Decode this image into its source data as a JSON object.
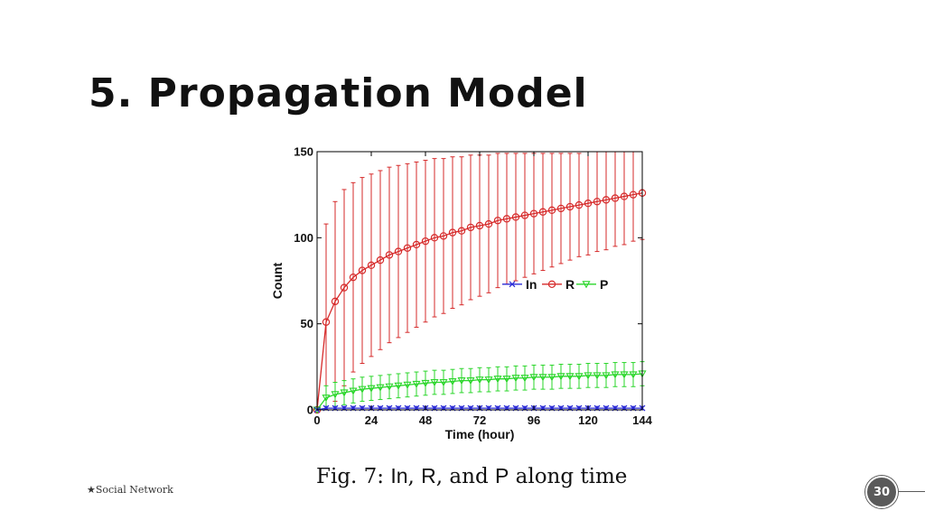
{
  "slide": {
    "title": "5. Propagation Model",
    "footer": "★Social Network",
    "page_number": "30"
  },
  "caption": {
    "prefix": "Fig. 7: ",
    "in": "In",
    "sep1": ", ",
    "r": "R",
    "mid": ", and ",
    "p": "P",
    "suffix": " along time"
  },
  "colors": {
    "In": "#2b2bd6",
    "R": "#d62a2a",
    "P": "#2ad62a",
    "axis": "#000000"
  },
  "chart_data": {
    "type": "line",
    "title": "",
    "xlabel": "Time (hour)",
    "ylabel": "Count",
    "xlim": [
      0,
      144
    ],
    "ylim": [
      0,
      150
    ],
    "xticks": [
      0,
      24,
      48,
      72,
      96,
      120,
      144
    ],
    "yticks": [
      0,
      50,
      100,
      150
    ],
    "grid": false,
    "legend": "center-right",
    "x": [
      0,
      4,
      8,
      12,
      16,
      20,
      24,
      28,
      32,
      36,
      40,
      44,
      48,
      52,
      56,
      60,
      64,
      68,
      72,
      76,
      80,
      84,
      88,
      92,
      96,
      100,
      104,
      108,
      112,
      116,
      120,
      124,
      128,
      132,
      136,
      140,
      144
    ],
    "series": [
      {
        "name": "In",
        "marker": "x",
        "values": [
          0,
          1,
          1,
          1,
          1,
          1,
          1,
          1,
          1,
          1,
          1,
          1,
          1,
          1,
          1,
          1,
          1,
          1,
          1,
          1,
          1,
          1,
          1,
          1,
          1,
          1,
          1,
          1,
          1,
          1,
          1,
          1,
          1,
          1,
          1,
          1,
          1
        ],
        "error": [
          0,
          1,
          1,
          1,
          1,
          1,
          1,
          1,
          1,
          1,
          1,
          1,
          1,
          1,
          1,
          1,
          1,
          1,
          1,
          1,
          1,
          1,
          1,
          1,
          1,
          1,
          1,
          1,
          1,
          1,
          1,
          1,
          1,
          1,
          1,
          1,
          1
        ]
      },
      {
        "name": "R",
        "marker": "o",
        "values": [
          0,
          51,
          63,
          71,
          77,
          81,
          84,
          87,
          90,
          92,
          94,
          96,
          98,
          100,
          101,
          103,
          104,
          106,
          107,
          108,
          110,
          111,
          112,
          113,
          114,
          115,
          116,
          117,
          118,
          119,
          120,
          121,
          122,
          123,
          124,
          125,
          126
        ],
        "error": [
          0,
          57,
          58,
          57,
          55,
          54,
          53,
          52,
          51,
          50,
          49,
          48,
          47,
          46,
          45,
          44,
          43,
          42,
          41,
          40,
          39,
          38,
          37,
          36,
          35,
          34,
          33,
          32,
          31,
          30,
          30,
          29,
          29,
          28,
          28,
          27,
          27
        ]
      },
      {
        "name": "P",
        "marker": "v",
        "values": [
          0,
          7,
          9,
          10,
          11,
          12,
          12.5,
          13,
          13.5,
          14,
          14.5,
          15,
          15.5,
          16,
          16,
          16.5,
          17,
          17,
          17.5,
          17.5,
          18,
          18,
          18.5,
          18.5,
          19,
          19,
          19,
          19.5,
          19.5,
          19.5,
          20,
          20,
          20,
          20.5,
          20.5,
          20.5,
          21
        ],
        "error": [
          0,
          7,
          7,
          7,
          7,
          7,
          7,
          7,
          7,
          7,
          7,
          7,
          7,
          7,
          7,
          7,
          7,
          7,
          7,
          7,
          7,
          7,
          7,
          7,
          7,
          7,
          7,
          7,
          7,
          7,
          7,
          7,
          7,
          7,
          7,
          7,
          7
        ]
      }
    ]
  }
}
